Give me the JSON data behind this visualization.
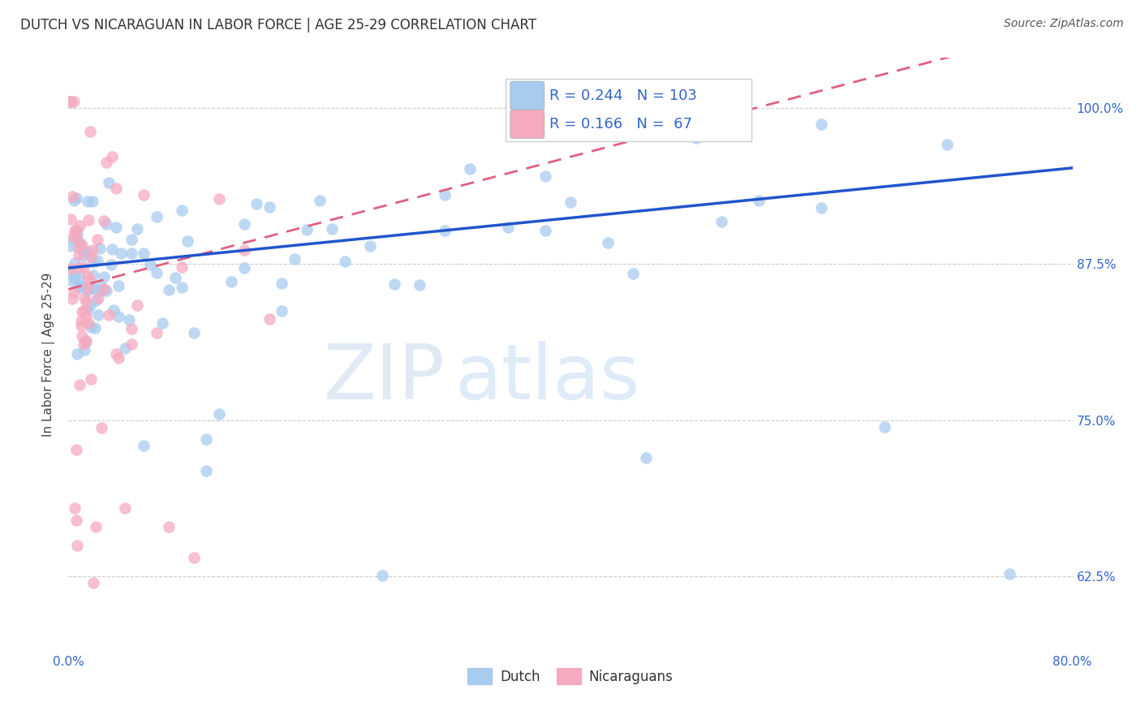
{
  "title": "DUTCH VS NICARAGUAN IN LABOR FORCE | AGE 25-29 CORRELATION CHART",
  "source": "Source: ZipAtlas.com",
  "ylabel": "In Labor Force | Age 25-29",
  "watermark_zip": "ZIP",
  "watermark_atlas": "atlas",
  "legend_r_dutch": "0.244",
  "legend_n_dutch": "103",
  "legend_r_nica": "0.166",
  "legend_n_nica": " 67",
  "dutch_color": "#A8CBF0",
  "nica_color": "#F5AABF",
  "trend_dutch_color": "#2255CC",
  "trend_nica_color": "#E06080",
  "background_color": "#FFFFFF",
  "ytick_vals": [
    0.625,
    0.75,
    0.875,
    1.0
  ],
  "ytick_labels": [
    "62.5%",
    "75.0%",
    "87.5%",
    "100.0%"
  ],
  "xlim": [
    0.0,
    0.8
  ],
  "ylim": [
    0.565,
    1.04
  ],
  "dutch_trend_x0": 0.0,
  "dutch_trend_y0": 0.872,
  "dutch_trend_x1": 0.8,
  "dutch_trend_y1": 0.952,
  "nica_trend_x0": 0.0,
  "nica_trend_y0": 0.855,
  "nica_trend_x1": 0.17,
  "nica_trend_y1": 0.9
}
